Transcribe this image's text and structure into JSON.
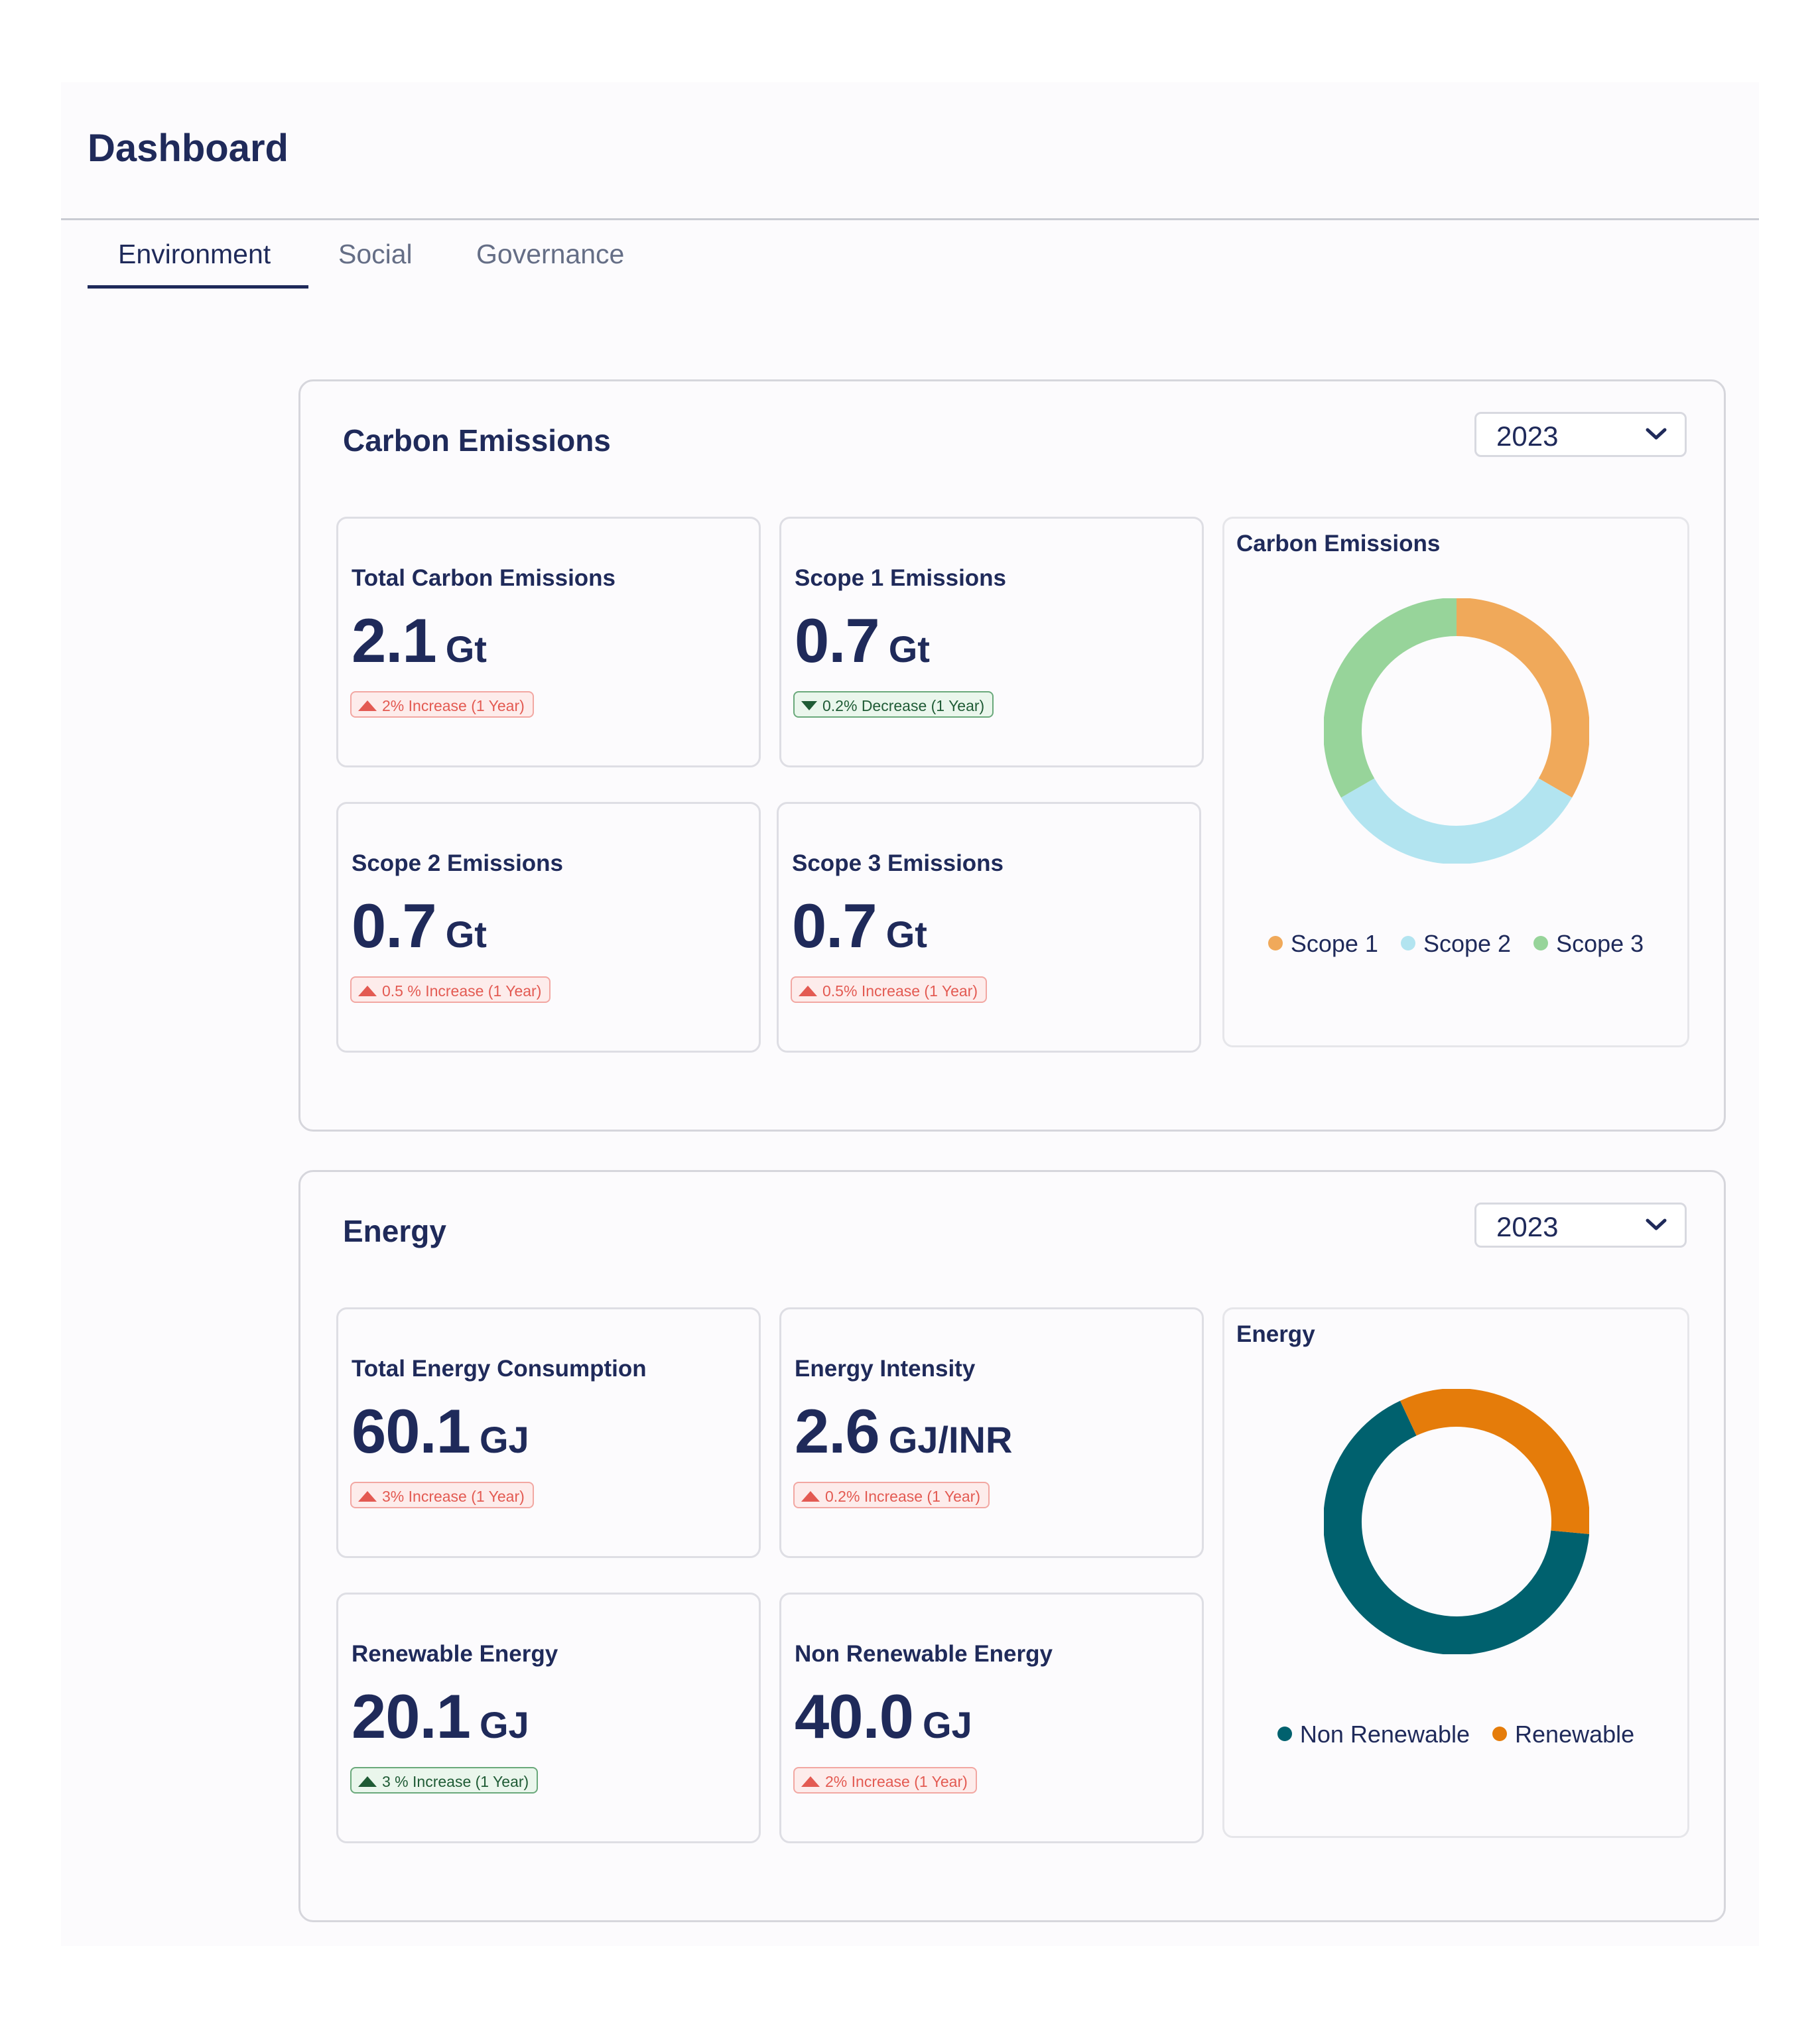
{
  "page": {
    "title": "Dashboard"
  },
  "tabs": [
    {
      "label": "Environment",
      "active": true
    },
    {
      "label": "Social",
      "active": false
    },
    {
      "label": "Governance",
      "active": false
    }
  ],
  "colors": {
    "navy": "#1f2a5a",
    "increase_red": "#e35a52",
    "decrease_green": "#1f5b35",
    "scope1": "#f0a95a",
    "scope2": "#b2e4f0",
    "scope3": "#97d49a",
    "non_renewable": "#00616e",
    "renewable": "#e57c0a"
  },
  "carbon": {
    "title": "Carbon Emissions",
    "year": "2023",
    "cards": [
      {
        "label": "Total Carbon Emissions",
        "value": "2.1",
        "unit": "Gt",
        "trend": "2% Increase (1 Year)",
        "direction": "up",
        "tone": "red"
      },
      {
        "label": "Scope 1 Emissions",
        "value": "0.7",
        "unit": "Gt",
        "trend": "0.2% Decrease (1 Year)",
        "direction": "down",
        "tone": "green"
      },
      {
        "label": "Scope 2 Emissions",
        "value": "0.7",
        "unit": "Gt",
        "trend": "0.5 % Increase (1 Year)",
        "direction": "up",
        "tone": "red"
      },
      {
        "label": "Scope 3 Emissions",
        "value": "0.7",
        "unit": "Gt",
        "trend": "0.5% Increase (1 Year)",
        "direction": "up",
        "tone": "red"
      }
    ],
    "chart": {
      "title": "Carbon Emissions",
      "legend": [
        "Scope 1",
        "Scope 2",
        "Scope 3"
      ]
    }
  },
  "energy": {
    "title": "Energy",
    "year": "2023",
    "cards": [
      {
        "label": "Total Energy Consumption",
        "value": "60.1",
        "unit": "GJ",
        "trend": "3% Increase (1 Year)",
        "direction": "up",
        "tone": "red"
      },
      {
        "label": "Energy Intensity",
        "value": "2.6",
        "unit": "GJ/INR",
        "trend": "0.2% Increase (1 Year)",
        "direction": "up",
        "tone": "red"
      },
      {
        "label": "Renewable Energy",
        "value": "20.1",
        "unit": "GJ",
        "trend": "3 % Increase (1 Year)",
        "direction": "up",
        "tone": "green"
      },
      {
        "label": "Non Renewable Energy",
        "value": "40.0",
        "unit": "GJ",
        "trend": "2% Increase (1 Year)",
        "direction": "up",
        "tone": "red"
      }
    ],
    "chart": {
      "title": "Energy",
      "legend": [
        "Non Renewable",
        "Renewable"
      ]
    }
  },
  "chart_data": [
    {
      "type": "pie",
      "title": "Carbon Emissions",
      "categories": [
        "Scope 1",
        "Scope 2",
        "Scope 3"
      ],
      "values": [
        0.7,
        0.7,
        0.7
      ],
      "colors": [
        "#f0a95a",
        "#b2e4f0",
        "#97d49a"
      ]
    },
    {
      "type": "pie",
      "title": "Energy",
      "categories": [
        "Non Renewable",
        "Renewable"
      ],
      "values": [
        40.0,
        20.1
      ],
      "colors": [
        "#00616e",
        "#e57c0a"
      ]
    }
  ]
}
